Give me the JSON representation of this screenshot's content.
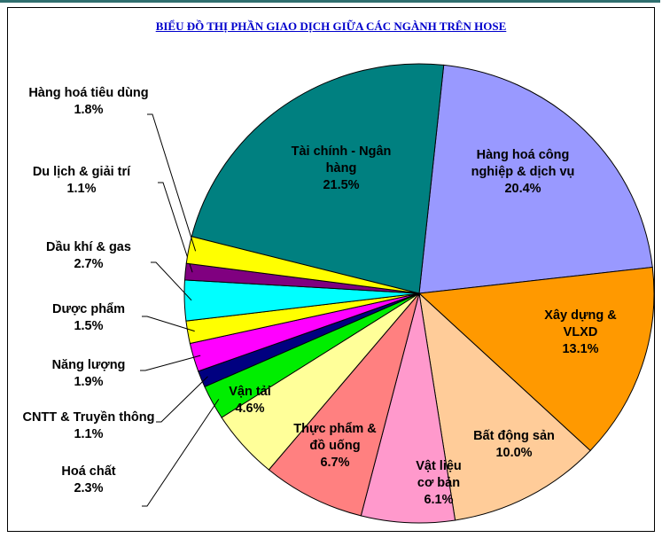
{
  "chart_data": {
    "type": "pie",
    "title": "BIỂU ĐỒ THỊ PHẦN GIAO DỊCH GIỮA CÁC NGÀNH TRÊN HOSE",
    "categories": [
      "Hàng hoá công nghiệp & dịch vụ",
      "Xây dựng & VLXD",
      "Bất động sản",
      "Vật liệu cơ bản",
      "Thực phẩm & đồ uống",
      "Vận tải",
      "Hoá chất",
      "CNTT & Truyền thông",
      "Năng lượng",
      "Dược phẩm",
      "Dầu khí & gas",
      "Du lịch & giải trí",
      "Hàng hoá tiêu dùng",
      "Tài chính - Ngân hàng"
    ],
    "values": [
      20.4,
      13.1,
      10.0,
      6.1,
      6.7,
      4.6,
      2.3,
      1.1,
      1.9,
      1.5,
      2.7,
      1.1,
      1.8,
      21.5
    ],
    "value_labels": [
      "20.4%",
      "13.1%",
      "10.0%",
      "6.1%",
      "6.7%",
      "4.6%",
      "2.3%",
      "1.1%",
      "1.9%",
      "1.5%",
      "2.7%",
      "1.1%",
      "1.8%",
      "21.5%"
    ],
    "colors": [
      "#9999ff",
      "#ff9900",
      "#ffcc99",
      "#ff99cc",
      "#ff8080",
      "#ffff99",
      "#00ee00",
      "#000080",
      "#ff00ff",
      "#ffff00",
      "#00ffff",
      "#800080",
      "#ffff00",
      "#008080"
    ]
  }
}
